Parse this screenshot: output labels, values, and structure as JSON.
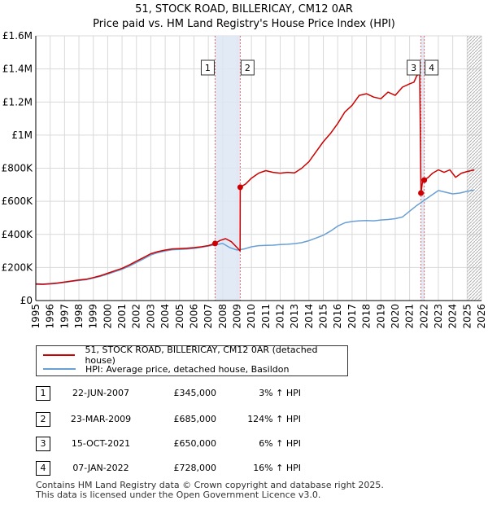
{
  "chart_data": {
    "type": "line",
    "title": "51, STOCK ROAD, BILLERICAY, CM12 0AR",
    "subtitle": "Price paid vs. HM Land Registry's House Price Index (HPI)",
    "xlim": [
      1995,
      2026
    ],
    "ylim": [
      0,
      1600000
    ],
    "x_ticks": [
      "1995",
      "1996",
      "1997",
      "1998",
      "1999",
      "2000",
      "2001",
      "2002",
      "2003",
      "2004",
      "2005",
      "2006",
      "2007",
      "2008",
      "2009",
      "2010",
      "2011",
      "2012",
      "2013",
      "2014",
      "2015",
      "2016",
      "2017",
      "2018",
      "2019",
      "2020",
      "2021",
      "2022",
      "2023",
      "2024",
      "2025",
      "2026"
    ],
    "y_ticks": [
      {
        "value": 0,
        "label": "£0"
      },
      {
        "value": 200000,
        "label": "£200K"
      },
      {
        "value": 400000,
        "label": "£400K"
      },
      {
        "value": 600000,
        "label": "£600K"
      },
      {
        "value": 800000,
        "label": "£800K"
      },
      {
        "value": 1000000,
        "label": "£1M"
      },
      {
        "value": 1200000,
        "label": "£1.2M"
      },
      {
        "value": 1400000,
        "label": "£1.4M"
      },
      {
        "value": 1600000,
        "label": "£1.6M"
      }
    ],
    "grid": true,
    "shaded_periods": [
      [
        2007.47,
        2009.22
      ],
      [
        2021.79,
        2022.02
      ]
    ],
    "hatched_from": 2025.0,
    "series": [
      {
        "name": "51, STOCK ROAD, BILLERICAY, CM12 0AR (detached house)",
        "color": "#cc0000",
        "x": [
          1995.0,
          1995.5,
          1996.0,
          1996.5,
          1997.0,
          1997.5,
          1998.0,
          1998.5,
          1999.0,
          1999.5,
          2000.0,
          2000.5,
          2001.0,
          2001.5,
          2002.0,
          2002.5,
          2003.0,
          2003.5,
          2004.0,
          2004.5,
          2005.0,
          2005.5,
          2006.0,
          2006.5,
          2007.0,
          2007.47,
          2007.8,
          2008.2,
          2008.6,
          2009.0,
          2009.21,
          2009.22,
          2009.6,
          2010.0,
          2010.5,
          2011.0,
          2011.5,
          2012.0,
          2012.5,
          2013.0,
          2013.5,
          2014.0,
          2014.5,
          2015.0,
          2015.5,
          2016.0,
          2016.5,
          2017.0,
          2017.5,
          2018.0,
          2018.5,
          2019.0,
          2019.5,
          2020.0,
          2020.5,
          2021.0,
          2021.3,
          2021.5,
          2021.7,
          2021.79,
          2021.9,
          2022.02,
          2022.3,
          2022.6,
          2023.0,
          2023.4,
          2023.8,
          2024.2,
          2024.6,
          2025.0,
          2025.5
        ],
        "y": [
          101000,
          99000,
          102000,
          106000,
          112000,
          118000,
          124000,
          129000,
          139000,
          150000,
          165000,
          180000,
          195000,
          215000,
          238000,
          260000,
          283000,
          296000,
          305000,
          312000,
          314000,
          316000,
          320000,
          325000,
          332000,
          345000,
          363000,
          374000,
          356000,
          320000,
          300000,
          685000,
          705000,
          740000,
          770000,
          785000,
          775000,
          770000,
          775000,
          772000,
          800000,
          840000,
          900000,
          960000,
          1010000,
          1070000,
          1140000,
          1180000,
          1240000,
          1250000,
          1230000,
          1220000,
          1260000,
          1240000,
          1290000,
          1310000,
          1320000,
          1360000,
          1370000,
          650000,
          720000,
          728000,
          745000,
          770000,
          790000,
          775000,
          790000,
          745000,
          770000,
          780000,
          790000
        ]
      },
      {
        "name": "HPI: Average price, detached house, Basildon",
        "color": "#6a9fd4",
        "x": [
          1995.0,
          1995.5,
          1996.0,
          1996.5,
          1997.0,
          1997.5,
          1998.0,
          1998.5,
          1999.0,
          1999.5,
          2000.0,
          2000.5,
          2001.0,
          2001.5,
          2002.0,
          2002.5,
          2003.0,
          2003.5,
          2004.0,
          2004.5,
          2005.0,
          2005.5,
          2006.0,
          2006.5,
          2007.0,
          2007.5,
          2008.0,
          2008.5,
          2009.0,
          2009.5,
          2010.0,
          2010.5,
          2011.0,
          2011.5,
          2012.0,
          2012.5,
          2013.0,
          2013.5,
          2014.0,
          2014.5,
          2015.0,
          2015.5,
          2016.0,
          2016.5,
          2017.0,
          2017.5,
          2018.0,
          2018.5,
          2019.0,
          2019.5,
          2020.0,
          2020.5,
          2021.0,
          2021.5,
          2022.0,
          2022.5,
          2023.0,
          2023.5,
          2024.0,
          2024.5,
          2025.0,
          2025.5
        ],
        "y": [
          98000,
          97000,
          100000,
          104000,
          110000,
          116000,
          121000,
          126000,
          136000,
          146000,
          160000,
          175000,
          189000,
          208000,
          230000,
          252000,
          275000,
          290000,
          300000,
          307000,
          309000,
          311000,
          315000,
          322000,
          330000,
          337000,
          345000,
          320000,
          305000,
          312000,
          325000,
          332000,
          334000,
          335000,
          338000,
          340000,
          344000,
          350000,
          362000,
          378000,
          395000,
          420000,
          450000,
          470000,
          478000,
          482000,
          484000,
          482000,
          487000,
          490000,
          495000,
          505000,
          540000,
          575000,
          605000,
          635000,
          665000,
          655000,
          645000,
          650000,
          660000,
          668000
        ]
      }
    ],
    "markers": [
      {
        "label": "1",
        "x": 2007.47,
        "y": 345000
      },
      {
        "label": "2",
        "x": 2009.22,
        "y": 685000
      },
      {
        "label": "3",
        "x": 2021.79,
        "y": 650000
      },
      {
        "label": "4",
        "x": 2022.02,
        "y": 728000
      }
    ]
  },
  "legend": {
    "property_label": "51, STOCK ROAD, BILLERICAY, CM12 0AR (detached house)",
    "hpi_label": "HPI: Average price, detached house, Basildon",
    "property_color": "#cc0000",
    "hpi_color": "#6a9fd4"
  },
  "transactions": [
    {
      "num": "1",
      "date": "22-JUN-2007",
      "price": "£345,000",
      "hpi": "3% ↑ HPI"
    },
    {
      "num": "2",
      "date": "23-MAR-2009",
      "price": "£685,000",
      "hpi": "124% ↑ HPI"
    },
    {
      "num": "3",
      "date": "15-OCT-2021",
      "price": "£650,000",
      "hpi": "6% ↑ HPI"
    },
    {
      "num": "4",
      "date": "07-JAN-2022",
      "price": "£728,000",
      "hpi": "16% ↑ HPI"
    }
  ],
  "footer": {
    "line1": "Contains HM Land Registry data © Crown copyright and database right 2025.",
    "line2": "This data is licensed under the Open Government Licence v3.0."
  }
}
